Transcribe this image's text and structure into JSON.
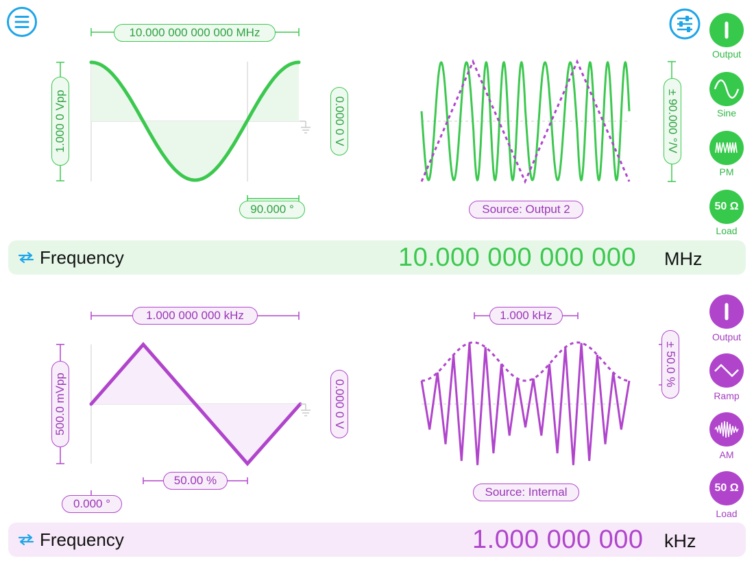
{
  "colors": {
    "green": "#3cc84f",
    "purple": "#b045cc",
    "blue": "#1ea5e8"
  },
  "icons": {
    "menu": "menu-icon",
    "settings": "sliders-icon",
    "swap": "swap-arrows-icon"
  },
  "channel1": {
    "waveform": "sine",
    "frequency_marker": "10.000 000 000 000 MHz",
    "amplitude": "1.000 0 Vpp",
    "offset": "0.000 0 V",
    "phase": "90.000 °",
    "mod_deviation": "± 90.000 °/V",
    "mod_source": "Source: Output 2",
    "buttons": [
      {
        "label": "Output",
        "icon": "power-icon"
      },
      {
        "label": "Sine",
        "icon": "sine-wave-icon"
      },
      {
        "label": "PM",
        "icon": "pm-wave-icon"
      },
      {
        "label": "Load",
        "text": "50 Ω"
      }
    ],
    "bar": {
      "label": "Frequency",
      "value": "10.000 000 000 000",
      "unit": "MHz"
    }
  },
  "channel2": {
    "waveform": "ramp",
    "frequency_marker": "1.000 000 000 kHz",
    "amplitude": "500.0 mVpp",
    "offset": "0.000 0 V",
    "symmetry": "50.00 %",
    "phase": "0.000 °",
    "mod_frequency": "1.000 kHz",
    "mod_depth": "± 50.0 %",
    "mod_source": "Source: Internal",
    "buttons": [
      {
        "label": "Output",
        "icon": "power-icon"
      },
      {
        "label": "Ramp",
        "icon": "ramp-wave-icon"
      },
      {
        "label": "AM",
        "icon": "am-wave-icon"
      },
      {
        "label": "Load",
        "text": "50 Ω"
      }
    ],
    "bar": {
      "label": "Frequency",
      "value": "1.000 000 000",
      "unit": "kHz"
    }
  }
}
